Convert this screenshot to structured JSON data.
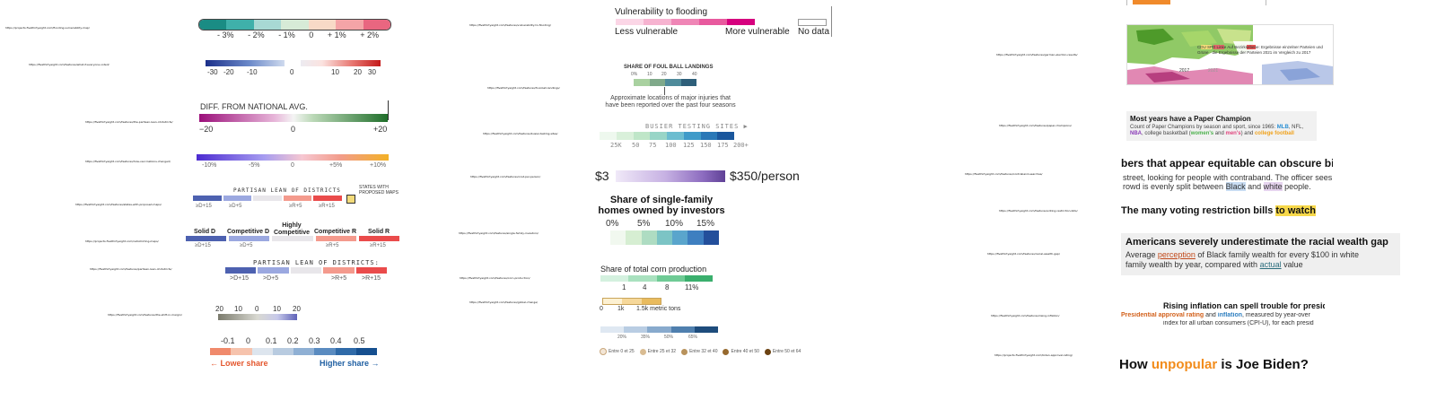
{
  "urls": [
    "https://projects.fivethirtyeight.com/flooding-vulnerability-map/",
    "https://fivethirtyeight.com/features/what-if-everyone-voted/",
    "https://fivethirtyeight.com/features/the-partisan-lean-of-districts/",
    "https://fivethirtyeight.com/features/how-vaccinations-changed/",
    "https://fivethirtyeight.com/features/states-with-proposed-maps/",
    "https://projects.fivethirtyeight.com/redistricting-maps/",
    "https://fivethirtyeight.com/features/partisan-lean-of-districts/",
    "https://fivethirtyeight.com/features/the-shift-in-margin/",
    "https://fivethirtyeight.com/features/vulnerability-to-flooding/",
    "https://fivethirtyeight.com/features/foul-ball-landings/",
    "https://fivethirtyeight.com/features/busier-testing-sites/",
    "https://fivethirtyeight.com/features/cost-per-person/",
    "https://fivethirtyeight.com/features/single-family-investors/",
    "https://fivethirtyeight.com/features/corn-production/",
    "https://fivethirtyeight.com/features/global-change/",
    "https://fivethirtyeight.com/features/german-election-results/",
    "https://fivethirtyeight.com/features/paper-champions/",
    "https://fivethirtyeight.com/features/contraband-searches/",
    "https://fivethirtyeight.com/features/voting-restriction-bills/",
    "https://fivethirtyeight.com/features/racial-wealth-gap/",
    "https://fivethirtyeight.com/features/rising-inflation/",
    "https://projects.fivethirtyeight.com/biden-approval-rating/"
  ],
  "legend1": {
    "labels": [
      "- 3%",
      "- 2%",
      "- 1%",
      "0",
      "+ 1%",
      "+ 2%"
    ],
    "colors": [
      "#1a8c84",
      "#3fb0aa",
      "#9fd4d0",
      "#d9ead8",
      "#f7d7c4",
      "#f49ea2",
      "#e9637a"
    ]
  },
  "legend2": {
    "labels": [
      "-30",
      "-20",
      "-10",
      "0",
      "10",
      "20",
      "30"
    ]
  },
  "legend3": {
    "title": "DIFF. FROM NATIONAL AVG.",
    "labels": [
      "−20",
      "0",
      "+20"
    ]
  },
  "legend4": {
    "labels": [
      "-10%",
      "-5%",
      "0",
      "+5%",
      "+10%"
    ]
  },
  "legend5": {
    "title": "PARTISAN LEAN OF DISTRICTS",
    "labels": [
      "≥D+15",
      "≥D+5",
      "",
      "≥R+5",
      "≥R+15"
    ],
    "note": "STATES WITH PROPOSED MAPS"
  },
  "legend6": {
    "headers": [
      "Solid D",
      "Competitive D",
      "Highly Competitive",
      "Competitive R",
      "Solid R"
    ],
    "labels": [
      "≥D+15",
      "≥D+5",
      "",
      "≥R+5",
      "≥R+15"
    ]
  },
  "legend7": {
    "title": "PARTISAN LEAN OF DISTRICTS:",
    "labels": [
      ">D+15",
      ">D+5",
      "",
      ">R+5",
      ">R+15"
    ]
  },
  "legend8": {
    "labels": [
      "20",
      "10",
      "0",
      "10",
      "20"
    ]
  },
  "legend9": {
    "labels": [
      "-0.1",
      "0",
      "0.1",
      "0.2",
      "0.3",
      "0.4",
      "0.5"
    ],
    "lower": "← Lower share",
    "higher": "Higher share →"
  },
  "flood": {
    "title": "Vulnerability to flooding",
    "less": "Less vulnerable",
    "more": "More vulnerable",
    "nodata": "No data"
  },
  "foul": {
    "title": "SHARE OF FOUL BALL LANDINGS",
    "labels": [
      "0%",
      "10",
      "20",
      "30",
      "40"
    ],
    "caption": "Approximate locations of major injuries that have been reported over the past four seasons"
  },
  "testing": {
    "title": "BUSIER TESTING SITES ▶",
    "labels": [
      "25K",
      "50",
      "75",
      "100",
      "125",
      "150",
      "175",
      "200+"
    ]
  },
  "cost": {
    "min": "$3",
    "max": "$350/person"
  },
  "investors": {
    "title": "Share of single-family homes owned by investors",
    "labels": [
      "0%",
      "5%",
      "10%",
      "15%"
    ]
  },
  "corn": {
    "title": "Share of total corn production",
    "labels": [
      "1",
      "4",
      "8",
      "11%"
    ],
    "tons_labels": [
      "0",
      "1k",
      "1.5k metric tons"
    ]
  },
  "bottom": {
    "labels": [
      "20%",
      "35%",
      "50%",
      "65%"
    ],
    "dots": [
      "Entre 0 et 25",
      "Entre 25 et 32",
      "Entre 32 et 40",
      "Entre 40 et 50",
      "Entre 50 et 64"
    ]
  },
  "map": {
    "year1": "2017",
    "year2": "2021",
    "text": "CDU  SPD  Linke  Auf Bezirksebene: Ergebnisse einzelner Parteien und Grüne · die Ergebnisse der Parteien 2021 im Vergleich zu 2017"
  },
  "paper": {
    "title": "Most years have a Paper Champion",
    "line1": "Count of Paper Champions by season and sport, since 1965:",
    "mlb": "MLB",
    "nfl": ", NFL,",
    "nba": "NBA",
    "line2a": ", college basketball (",
    "women": "women's",
    "and": " and ",
    "men": "men's",
    "line2b": ") and ",
    "football": "college football"
  },
  "contraband": {
    "title": "bers that appear equitable can obscure bi",
    "l1": "street, looking for people with contraband. The officer sees 10",
    "l2a": "rowd is evenly split between ",
    "black": "Black",
    "and": " and ",
    "white": "white",
    "l2b": " people."
  },
  "voting": {
    "a": "The many voting restriction bills ",
    "b": "to watch"
  },
  "wealth": {
    "title": "Americans severely underestimate the racial wealth gap",
    "l1a": "Average ",
    "perception": "perception",
    "l1b": " of Black family wealth for every $100 in white",
    "l2a": "family wealth by year, compared with ",
    "actual": "actual",
    "l2b": " value"
  },
  "inflation": {
    "title": "Rising inflation can spell trouble for presid",
    "approval": "Presidential approval rating",
    "and": " and ",
    "infl": "inflation",
    "rest": ", measured by year-over",
    "l2": "index for all urban consumers (CPI-U), for each presid"
  },
  "biden": {
    "a": "How ",
    "b": "unpopular",
    "c": " is Joe Biden?"
  }
}
